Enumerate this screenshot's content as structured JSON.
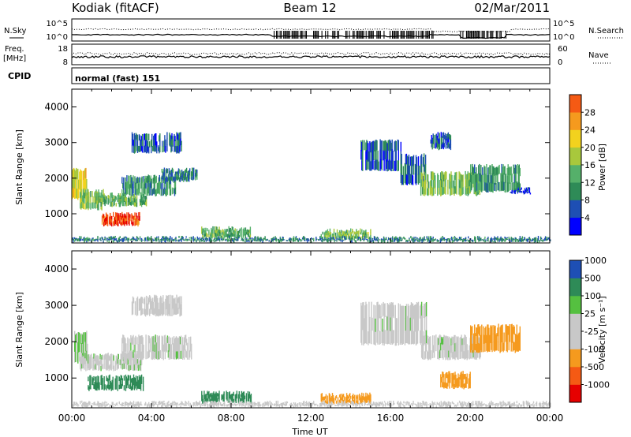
{
  "header": {
    "station": "Kodiak (fitACF)",
    "beam": "Beam 12",
    "date": "02/Mar/2011"
  },
  "strips": {
    "nsky_label": "N.Sky",
    "nsearch_label": "N.Search",
    "nsky_ticks": [
      "10^5",
      "10^0"
    ],
    "nsearch_ticks": [
      "10^5",
      "10^0"
    ],
    "freq_label_1": "Freq.",
    "freq_label_2": "[MHz]",
    "freq_ticks": [
      "18",
      "8"
    ],
    "nave_label": "Nave",
    "nave_ticks": [
      "60",
      "0"
    ],
    "cpid_label": "CPID",
    "cpid_value": "normal (fast) 151"
  },
  "colors": {
    "power": [
      "#0000ff",
      "#1e4fb4",
      "#2e8b57",
      "#55b06a",
      "#a8c83c",
      "#f2d21e",
      "#f59a1e",
      "#f55a14",
      "#e60000"
    ],
    "velocity": [
      "#e60000",
      "#f55a14",
      "#f59a1e",
      "#c8c8c8",
      "#c8c8c8",
      "#55c040",
      "#2e8b57",
      "#1e4fb4"
    ]
  },
  "chart_data": [
    {
      "type": "heatmap",
      "name": "power",
      "ylabel": "Slant Range [km]",
      "xlabel": "",
      "yticks": [
        "1000",
        "2000",
        "3000",
        "4000"
      ],
      "ylim": [
        180,
        4500
      ],
      "colorbar_label": "Power [dB]",
      "colorbar_ticks": [
        "4",
        "8",
        "12",
        "16",
        "20",
        "24",
        "28"
      ],
      "colorbar_range": [
        0,
        32
      ],
      "regions": [
        {
          "t0": 0.0,
          "t1": 0.8,
          "r0": 1400,
          "r1": 2300,
          "v": 18
        },
        {
          "t0": 0.4,
          "t1": 1.6,
          "r0": 1100,
          "r1": 1700,
          "v": 14
        },
        {
          "t0": 1.5,
          "t1": 3.4,
          "r0": 650,
          "r1": 1050,
          "v": 28
        },
        {
          "t0": 1.2,
          "t1": 3.8,
          "r0": 1200,
          "r1": 1600,
          "v": 12
        },
        {
          "t0": 2.5,
          "t1": 5.2,
          "r0": 1500,
          "r1": 2100,
          "v": 10
        },
        {
          "t0": 3.0,
          "t1": 5.5,
          "r0": 2700,
          "r1": 3300,
          "v": 6
        },
        {
          "t0": 4.5,
          "t1": 6.3,
          "r0": 1900,
          "r1": 2300,
          "v": 8
        },
        {
          "t0": 6.5,
          "t1": 9.0,
          "r0": 300,
          "r1": 650,
          "v": 12
        },
        {
          "t0": 12.5,
          "t1": 15.0,
          "r0": 280,
          "r1": 600,
          "v": 14
        },
        {
          "t0": 14.5,
          "t1": 16.5,
          "r0": 2200,
          "r1": 3100,
          "v": 6
        },
        {
          "t0": 16.5,
          "t1": 17.8,
          "r0": 1800,
          "r1": 2700,
          "v": 6
        },
        {
          "t0": 17.5,
          "t1": 20.5,
          "r0": 1500,
          "r1": 2200,
          "v": 14
        },
        {
          "t0": 18.0,
          "t1": 19.0,
          "r0": 2800,
          "r1": 3300,
          "v": 6
        },
        {
          "t0": 20.0,
          "t1": 22.5,
          "r0": 1600,
          "r1": 2400,
          "v": 10
        },
        {
          "t0": 22.0,
          "t1": 23.0,
          "r0": 1550,
          "r1": 1750,
          "v": 4
        },
        {
          "t0": 0.0,
          "t1": 24.0,
          "r0": 200,
          "r1": 380,
          "v": 8
        }
      ]
    },
    {
      "type": "heatmap",
      "name": "velocity",
      "ylabel": "Slant Range [km]",
      "xlabel": "Time UT",
      "xticks": [
        "00:00",
        "04:00",
        "08:00",
        "12:00",
        "16:00",
        "20:00",
        "00:00"
      ],
      "yticks": [
        "1000",
        "2000",
        "3000",
        "4000"
      ],
      "ylim": [
        180,
        4500
      ],
      "colorbar_label": "Velocity [m s⁻¹]",
      "colorbar_ticks": [
        "-1000",
        "-500",
        "-100",
        "-25",
        "25",
        "100",
        "500",
        "1000"
      ],
      "regions": [
        {
          "t0": 0.0,
          "t1": 0.8,
          "r0": 1400,
          "r1": 2300,
          "v": 25
        },
        {
          "t0": 0.4,
          "t1": 3.5,
          "r0": 1200,
          "r1": 1700,
          "v": 0
        },
        {
          "t0": 0.8,
          "t1": 3.6,
          "r0": 650,
          "r1": 1100,
          "v": 150
        },
        {
          "t0": 2.5,
          "t1": 6.0,
          "r0": 1500,
          "r1": 2200,
          "v": 0
        },
        {
          "t0": 3.0,
          "t1": 5.5,
          "r0": 2700,
          "r1": 3300,
          "v": -50
        },
        {
          "t0": 6.5,
          "t1": 9.0,
          "r0": 300,
          "r1": 650,
          "v": 150
        },
        {
          "t0": 12.5,
          "t1": 15.0,
          "r0": 280,
          "r1": 600,
          "v": -300
        },
        {
          "t0": 14.5,
          "t1": 17.8,
          "r0": 1900,
          "r1": 3100,
          "v": 0
        },
        {
          "t0": 17.5,
          "t1": 20.5,
          "r0": 1500,
          "r1": 2200,
          "v": 0
        },
        {
          "t0": 20.0,
          "t1": 22.5,
          "r0": 1700,
          "r1": 2500,
          "v": -150
        },
        {
          "t0": 18.5,
          "t1": 20.0,
          "r0": 700,
          "r1": 1200,
          "v": -150
        },
        {
          "t0": 0.0,
          "t1": 24.0,
          "r0": 200,
          "r1": 380,
          "v": -50
        }
      ]
    }
  ]
}
